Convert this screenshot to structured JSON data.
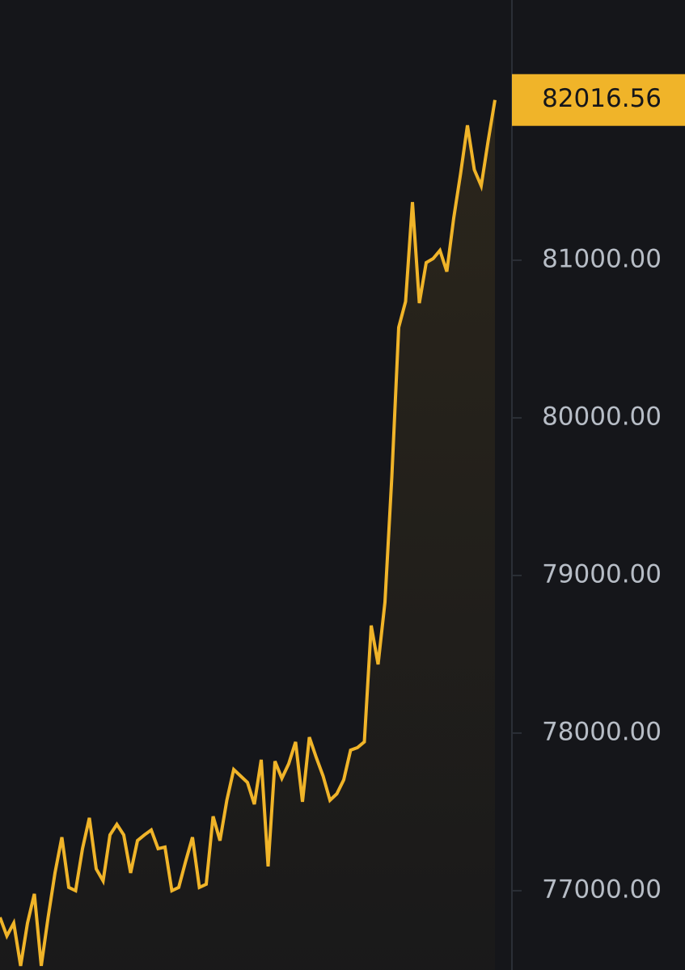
{
  "chart_data": {
    "type": "line",
    "color": "#f0b429",
    "values": [
      76831,
      76713,
      76795,
      76523,
      76795,
      76980,
      76523,
      76831,
      77113,
      77339,
      77021,
      77000,
      77267,
      77462,
      77138,
      77062,
      77354,
      77421,
      77354,
      77113,
      77318,
      77354,
      77385,
      77267,
      77277,
      77000,
      77021,
      77185,
      77339,
      77021,
      77041,
      77472,
      77318,
      77574,
      77769,
      77728,
      77687,
      77549,
      77831,
      77154,
      77821,
      77713,
      77805,
      77944,
      77564,
      77974,
      77846,
      77728,
      77574,
      77615,
      77703,
      77892,
      77908,
      77944,
      78682,
      78436,
      78831,
      79626,
      80574,
      80738,
      81369,
      80728,
      80985,
      81010,
      81062,
      80928,
      81267,
      81549,
      81856,
      81574,
      81472,
      81754,
      82016.56
    ],
    "ylim": [
      76497,
      82651
    ],
    "yticks": [
      {
        "value": 77000,
        "label": "77000.00"
      },
      {
        "value": 78000,
        "label": "78000.00"
      },
      {
        "value": 79000,
        "label": "79000.00"
      },
      {
        "value": 80000,
        "label": "80000.00"
      },
      {
        "value": 81000,
        "label": "81000.00"
      }
    ]
  }
}
